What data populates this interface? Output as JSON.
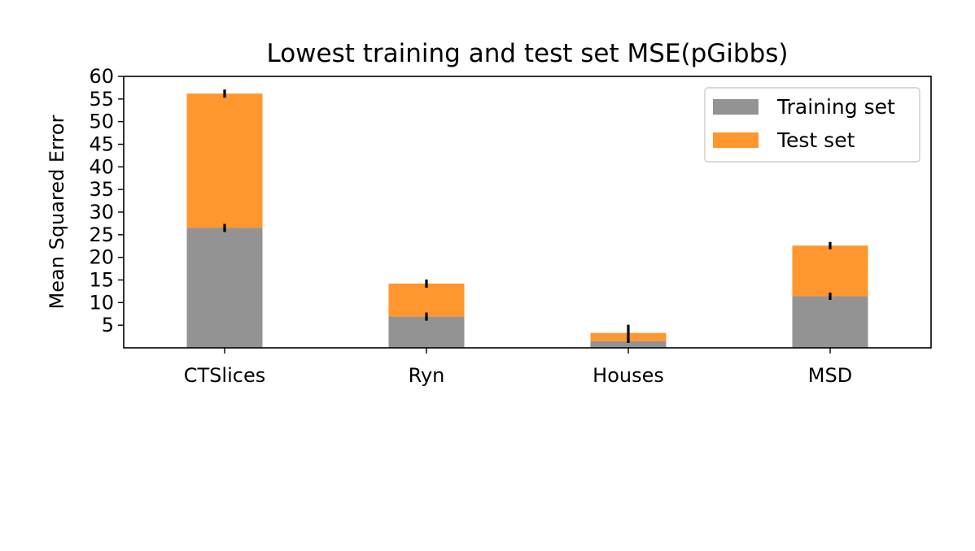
{
  "chart_data": {
    "type": "bar",
    "stacked": true,
    "title": "Lowest training and test set MSE(pGibbs)",
    "xlabel": "",
    "ylabel": "Mean Squared Error",
    "categories": [
      "CTSlices",
      "Ryn",
      "Houses",
      "MSD"
    ],
    "ylim": [
      0,
      60
    ],
    "yticks": [
      5,
      10,
      15,
      20,
      25,
      30,
      35,
      40,
      45,
      50,
      55,
      60
    ],
    "grid": false,
    "legend_position": "top-right",
    "series": [
      {
        "name": "Training set",
        "color": "#939393",
        "values": [
          26.5,
          6.9,
          1.5,
          11.4
        ],
        "error": [
          0.9,
          0.9,
          0.4,
          0.8
        ]
      },
      {
        "name": "Test set",
        "color": "#ff962e",
        "values": [
          29.7,
          7.3,
          1.8,
          11.2
        ],
        "error": [
          0.9,
          0.9,
          1.8,
          0.8
        ]
      }
    ]
  }
}
